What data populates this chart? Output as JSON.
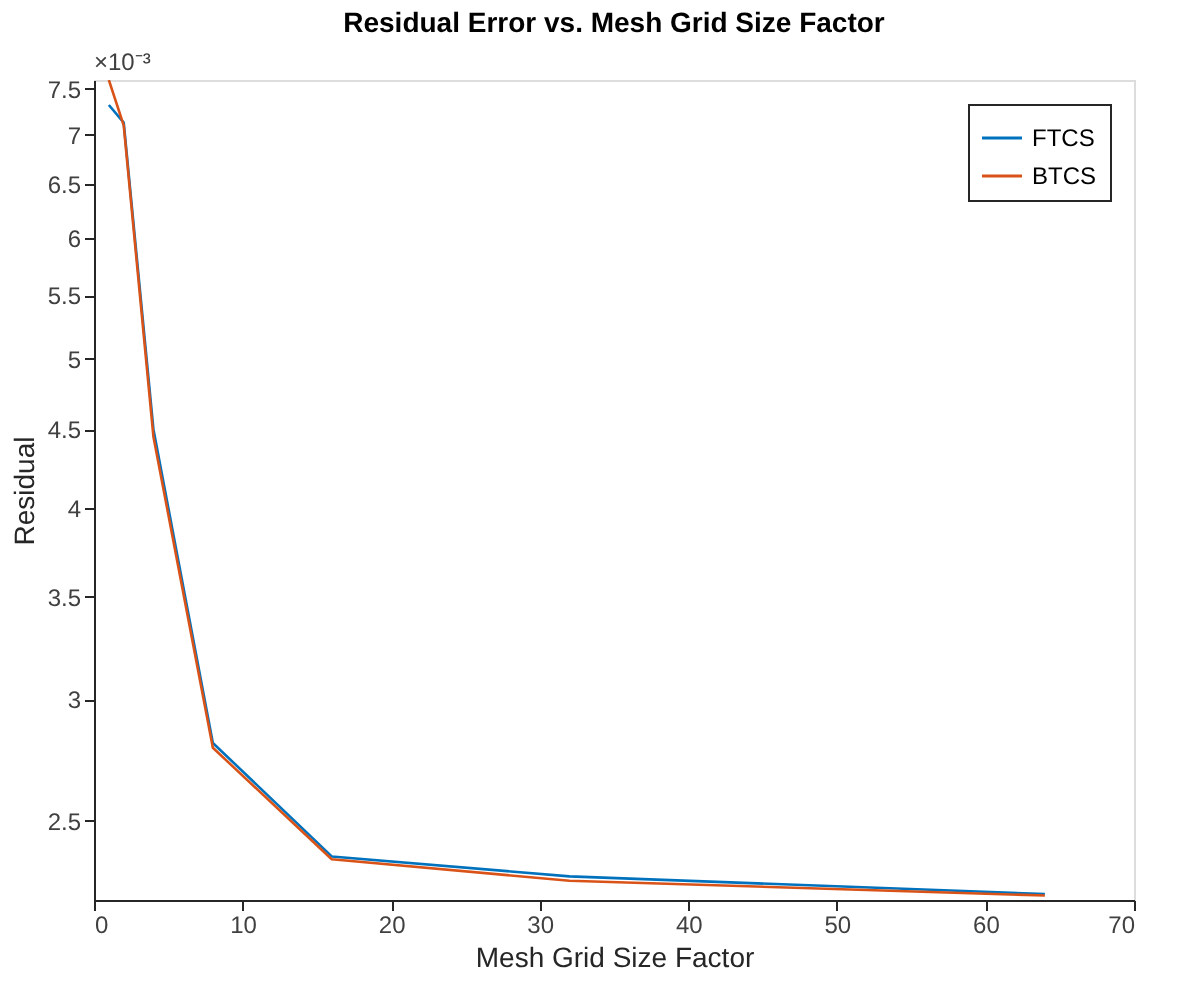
{
  "chart_data": {
    "type": "line",
    "title": "Residual Error vs. Mesh Grid Size Factor",
    "xlabel": "Mesh Grid Size Factor",
    "ylabel": "Residual",
    "x": [
      1,
      2,
      4,
      8,
      16,
      32,
      64
    ],
    "series": [
      {
        "name": "FTCS",
        "color": "#0072bd",
        "values": [
          7.32,
          7.13,
          4.5,
          2.81,
          2.37,
          2.3,
          2.24
        ]
      },
      {
        "name": "BTCS",
        "color": "#d95319",
        "values": [
          7.6,
          7.1,
          4.45,
          2.79,
          2.36,
          2.285,
          2.235
        ]
      }
    ],
    "log": "y",
    "xlim": [
      0,
      70
    ],
    "xticks": [
      0,
      10,
      20,
      30,
      40,
      50,
      60,
      70
    ],
    "ylim": [
      2.22,
      7.6
    ],
    "yticks": [
      2.5,
      3,
      3.5,
      4,
      4.5,
      5,
      5.5,
      6,
      6.5,
      7,
      7.5
    ],
    "annotations": [
      "×10⁻³"
    ],
    "legend": "top right",
    "grid": false,
    "marker": "none",
    "line_style": "solid"
  }
}
